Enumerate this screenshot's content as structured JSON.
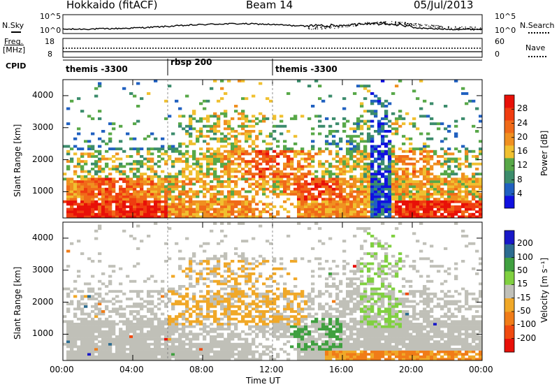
{
  "header": {
    "radar": "Hokkaido (fitACF)",
    "beam": "Beam 14",
    "date": "05/Jul/2013"
  },
  "top_panels": {
    "nsky_label": "N.Sky",
    "nsky_ticks": [
      "10^5",
      "10^0"
    ],
    "nsearch_label": "N.Search",
    "nsearch_ticks": [
      "10^5",
      "10^0"
    ],
    "freq_label": "Freq.",
    "freq_unit": "[MHz]",
    "freq_ticks": [
      "18",
      "8"
    ],
    "nave_label": "Nave",
    "nave_ticks": [
      "60",
      "0"
    ],
    "cpid_label": "CPID",
    "cpid_segments": [
      {
        "label": "themis -3300",
        "start_hour": 0
      },
      {
        "label": "rbsp 200",
        "start_hour": 6
      },
      {
        "label": "themis -3300",
        "start_hour": 12
      }
    ]
  },
  "colors": {
    "power_scale": [
      "#1010e0",
      "#2060c0",
      "#3c8c6c",
      "#58a848",
      "#f0c030",
      "#f09020",
      "#f06a18",
      "#f03c10",
      "#e81008"
    ],
    "velocity_scale": [
      "#e81008",
      "#f04a10",
      "#f07c18",
      "#f0a828",
      "#c0c0b8",
      "#80d040",
      "#40a040",
      "#2c6c90",
      "#1818c8"
    ]
  },
  "chart_data": [
    {
      "type": "heatmap",
      "name": "Power",
      "ylabel": "Slant Range [km]",
      "yticks": [
        1000,
        2000,
        3000,
        4000
      ],
      "ylim": [
        180,
        4500
      ],
      "colorbar_label": "Power [dB]",
      "colorbar_ticks": [
        4,
        8,
        12,
        16,
        20,
        24,
        28
      ],
      "colorbar_range": [
        0,
        32
      ]
    },
    {
      "type": "heatmap",
      "name": "Velocity",
      "ylabel": "Slant Range [km]",
      "yticks": [
        1000,
        2000,
        3000,
        4000
      ],
      "ylim": [
        180,
        4500
      ],
      "colorbar_label": "Velocity [m s⁻¹]",
      "colorbar_ticks": [
        200,
        100,
        50,
        15,
        -15,
        -50,
        -100,
        -200
      ],
      "xlabel": "Time UT",
      "xticks": [
        "00:00",
        "04:00",
        "08:00",
        "12:00",
        "16:00",
        "20:00",
        "00:00"
      ],
      "xlim_hours": [
        0,
        24
      ]
    }
  ]
}
